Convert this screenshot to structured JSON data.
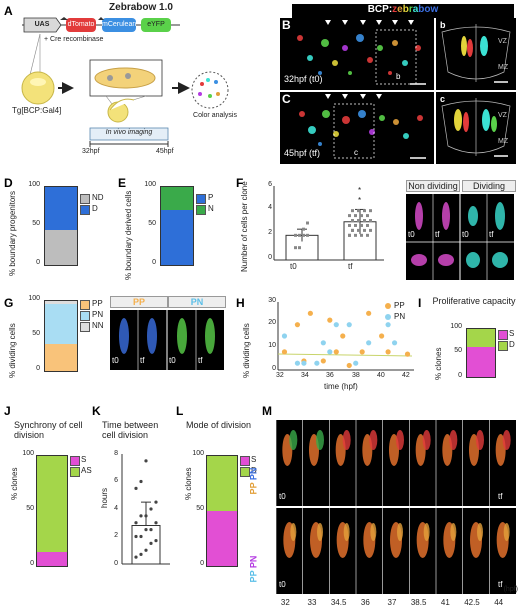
{
  "panels": {
    "A": "A",
    "B": "B",
    "C": "C",
    "D": "D",
    "E": "E",
    "F": "F",
    "G": "G",
    "H": "H",
    "I": "I",
    "J": "J",
    "K": "K",
    "L": "L",
    "M": "M"
  },
  "schematic": {
    "title": "Zebrabow 1.0",
    "uas": "UAS",
    "cre": "+ Cre recombinase",
    "dtomato": "dTomato",
    "mcerulean": "mCerulean",
    "eyfp": "eYFP",
    "tg": "Tg[BCP:Gal4]",
    "invivo": "In vivo imaging",
    "t32": "32hpf",
    "t45": "45hpf",
    "color": "Color analysis"
  },
  "microscopy": {
    "header_prefix": "BCP:",
    "header_z": "z",
    "header_e": "e",
    "header_b": "b",
    "header_r": "r",
    "header_a": "a",
    "header_bow": "bow",
    "b_time": "32hpf (t0)",
    "c_time": "45hpf (tf)",
    "b_inset": "b",
    "c_inset": "c",
    "vz": "VZ",
    "mz": "MZ"
  },
  "chart_data": [
    {
      "id": "D",
      "type": "bar",
      "ylabel": "% boundary progenitors",
      "ylim": [
        0,
        100
      ],
      "stack": [
        {
          "name": "ND",
          "value": 45,
          "color": "#bdbdbd"
        },
        {
          "name": "D",
          "value": 55,
          "color": "#2e6fd8"
        }
      ]
    },
    {
      "id": "E",
      "type": "bar",
      "ylabel": "% boundary derived cells",
      "ylim": [
        0,
        100
      ],
      "stack": [
        {
          "name": "N",
          "value": 70,
          "color": "#2e6fd8"
        },
        {
          "name": "P",
          "value": 30,
          "color": "#3aaa4a"
        }
      ]
    },
    {
      "id": "F",
      "type": "bar",
      "ylabel": "Number of cells per clone",
      "categories": [
        "t0",
        "tf"
      ],
      "values": [
        2.0,
        3.1
      ],
      "errors": [
        0.5,
        1.0
      ],
      "ylim": [
        0,
        6
      ],
      "ticks": [
        0,
        2,
        4,
        6
      ]
    },
    {
      "id": "G",
      "type": "bar",
      "ylabel": "% dividing cells",
      "ylim": [
        0,
        100
      ],
      "stack": [
        {
          "name": "PP",
          "value": 38,
          "color": "#f9c37a"
        },
        {
          "name": "PN",
          "value": 58,
          "color": "#a9ddf3"
        },
        {
          "name": "NN",
          "value": 4,
          "color": "#dddddd"
        }
      ]
    },
    {
      "id": "H",
      "type": "scatter",
      "ylabel": "% dividing cells",
      "xlabel": "time (hpf)",
      "xlim": [
        32,
        42.5
      ],
      "ylim": [
        0,
        30
      ],
      "xticks": [
        32,
        34,
        36,
        38,
        40,
        42
      ],
      "yticks": [
        0,
        10,
        20,
        30
      ],
      "series": [
        {
          "name": "PP",
          "color": "#f5b04d",
          "points": [
            [
              32.5,
              8
            ],
            [
              33.5,
              20
            ],
            [
              34,
              4
            ],
            [
              34.5,
              25
            ],
            [
              35.5,
              4
            ],
            [
              36,
              22
            ],
            [
              36.5,
              8
            ],
            [
              37,
              15
            ],
            [
              37.5,
              2
            ],
            [
              38.5,
              8
            ],
            [
              39,
              25
            ],
            [
              40,
              15
            ],
            [
              40.5,
              8
            ],
            [
              42,
              7
            ]
          ]
        },
        {
          "name": "PN",
          "color": "#8fd3ef",
          "points": [
            [
              32.5,
              15
            ],
            [
              33.5,
              3
            ],
            [
              34,
              3
            ],
            [
              35,
              3
            ],
            [
              35.5,
              12
            ],
            [
              36,
              8
            ],
            [
              36.5,
              20
            ],
            [
              37.5,
              20
            ],
            [
              38,
              3
            ],
            [
              39,
              12
            ],
            [
              40.5,
              20
            ],
            [
              41,
              12
            ]
          ]
        }
      ]
    },
    {
      "id": "I",
      "type": "bar",
      "title": "Proliferative capacity",
      "ylabel": "% clones",
      "ylim": [
        0,
        100
      ],
      "stack": [
        {
          "name": "S",
          "value": 63,
          "color": "#e24fd4"
        },
        {
          "name": "D",
          "value": 37,
          "color": "#a4d64a"
        }
      ]
    },
    {
      "id": "J",
      "type": "bar",
      "title": "Synchrony of cell division",
      "ylabel": "% clones",
      "ylim": [
        0,
        100
      ],
      "stack": [
        {
          "name": "S",
          "value": 13,
          "color": "#e24fd4"
        },
        {
          "name": "AS",
          "value": 87,
          "color": "#a4d64a"
        }
      ]
    },
    {
      "id": "K",
      "type": "bar",
      "title": "Time between cell division",
      "ylabel": "hours",
      "ylim": [
        0,
        8
      ],
      "yticks": [
        0,
        2,
        4,
        6,
        8
      ],
      "values": [
        2.8
      ],
      "errors": [
        1.7
      ],
      "points": [
        0.5,
        0.7,
        1.0,
        1.5,
        1.7,
        2.0,
        2.0,
        2.5,
        2.5,
        3.0,
        3.0,
        3.5,
        3.5,
        4.0,
        4.5,
        5.5,
        6.0,
        7.5
      ]
    },
    {
      "id": "L",
      "type": "bar",
      "title": "Mode of division",
      "ylabel": "% clones",
      "ylim": [
        0,
        100
      ],
      "stack": [
        {
          "name": "S",
          "value": 50,
          "color": "#e24fd4"
        },
        {
          "name": "D",
          "value": 50,
          "color": "#a4d64a"
        }
      ]
    }
  ],
  "legends": {
    "D": [
      "ND",
      "D"
    ],
    "E": [
      "P",
      "N"
    ],
    "G": [
      "PP",
      "PN",
      "NN"
    ],
    "H": [
      "PP",
      "PN"
    ],
    "I": [
      "S",
      "D"
    ],
    "J": [
      "S",
      "AS"
    ],
    "L": [
      "S",
      "D"
    ]
  },
  "titles": {
    "I": "Proliferative capacity",
    "J": "Synchrony of cell division",
    "K": "Time between cell division",
    "L": "Mode of division"
  },
  "F_micro": {
    "nondiv": "Non dividing",
    "div": "Dividing",
    "t0": "t0",
    "tf": "tf"
  },
  "G_micro": {
    "pp": "PP",
    "pn": "PN",
    "t0": "t0",
    "tf": "tf"
  },
  "M": {
    "row1_pn": "PN",
    "row1_pp": "PN",
    "row2_pp": "PP",
    "row2_pn": "PN",
    "t0": "t0",
    "tf": "tf",
    "times": [
      "32",
      "33",
      "34.5",
      "36",
      "37",
      "38.5",
      "41",
      "42.5",
      "44"
    ],
    "unit": "(hpf)"
  },
  "axis": {
    "D_ticks": [
      "0",
      "50",
      "100"
    ],
    "pct_ticks": [
      "0",
      "50",
      "100"
    ],
    "F_cats": [
      "t0",
      "tf"
    ],
    "F_ticks": [
      "0",
      "2",
      "4",
      "6"
    ],
    "K_ticks": [
      "0",
      "2",
      "4",
      "6",
      "8"
    ],
    "H_xticks": [
      "32",
      "34",
      "36",
      "38",
      "40",
      "42"
    ],
    "H_yticks": [
      "0",
      "10",
      "20",
      "30"
    ],
    "H_xlabel": "time (hpf)"
  },
  "ylabels": {
    "D": "% boundary progenitors",
    "E": "% boundary derived cells",
    "F": "Number of cells per clone",
    "G": "% dividing cells",
    "H": "% dividing cells",
    "I": "% clones",
    "J": "% clones",
    "K": "hours",
    "L": "% clones"
  },
  "star": "*"
}
